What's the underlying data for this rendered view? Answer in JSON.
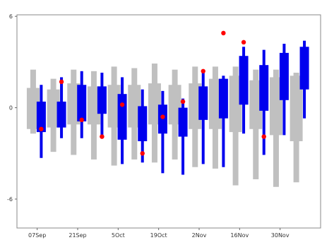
{
  "chart_data": {
    "type": "box",
    "title": "",
    "xlabel": "",
    "ylabel": "",
    "ylim": [
      -7.9,
      6.1
    ],
    "yticks": [
      6,
      0,
      -6
    ],
    "ytick_labels": [
      "6",
      "0",
      "-6"
    ],
    "xtick_labels": [
      "07Sep",
      "21Sep",
      "5Oct",
      "19Oct",
      "2Nov",
      "16Nov",
      "30Nov"
    ],
    "xtick_positions": [
      1,
      3,
      5,
      7,
      9,
      11,
      13
    ],
    "grid": false,
    "legend": "none",
    "colors": {
      "gray_series": "#c0c0c0",
      "blue_series": "#0000ee",
      "observed": "#ff0000"
    },
    "gray_series": [
      {
        "x": 0.8,
        "min": -1.7,
        "q1": -1.4,
        "q3": 1.3,
        "max": 2.5
      },
      {
        "x": 1.8,
        "min": -2.9,
        "q1": -1.3,
        "q3": 1.2,
        "max": 1.9
      },
      {
        "x": 2.8,
        "min": -3.1,
        "q1": -1.1,
        "q3": 1.6,
        "max": 2.5
      },
      {
        "x": 3.8,
        "min": -3.4,
        "q1": -1.1,
        "q3": 1.4,
        "max": 2.4
      },
      {
        "x": 4.8,
        "min": -3.8,
        "q1": -1.3,
        "q3": 1.5,
        "max": 2.7
      },
      {
        "x": 5.8,
        "min": -3.4,
        "q1": -1.3,
        "q3": 1.5,
        "max": 2.6
      },
      {
        "x": 6.8,
        "min": -3.6,
        "q1": -1.1,
        "q3": 1.6,
        "max": 2.9
      },
      {
        "x": 7.8,
        "min": -3.4,
        "q1": -1.1,
        "q3": 1.5,
        "max": 2.5
      },
      {
        "x": 8.8,
        "min": -3.9,
        "q1": -1.4,
        "q3": 1.6,
        "max": 2.7
      },
      {
        "x": 9.8,
        "min": -4.0,
        "q1": -1.4,
        "q3": 1.9,
        "max": 2.7
      },
      {
        "x": 10.8,
        "min": -5.1,
        "q1": -1.6,
        "q3": 2.1,
        "max": 2.7
      },
      {
        "x": 11.8,
        "min": -4.7,
        "q1": -1.4,
        "q3": 1.8,
        "max": 2.5
      },
      {
        "x": 12.8,
        "min": -5.2,
        "q1": -1.8,
        "q3": 2.0,
        "max": 2.5
      },
      {
        "x": 13.8,
        "min": -4.9,
        "q1": -2.2,
        "q3": 2.1,
        "max": 2.3
      }
    ],
    "blue_series": [
      {
        "x": 1.2,
        "min": -3.3,
        "q1": -1.6,
        "q3": 0.4,
        "max": 1.5
      },
      {
        "x": 2.2,
        "min": -2.0,
        "q1": -1.3,
        "q3": 0.4,
        "max": 2.0
      },
      {
        "x": 3.2,
        "min": -2.0,
        "q1": -0.9,
        "q3": 1.5,
        "max": 2.4
      },
      {
        "x": 4.2,
        "min": -1.9,
        "q1": -0.4,
        "q3": 1.4,
        "max": 2.3
      },
      {
        "x": 5.2,
        "min": -3.7,
        "q1": -2.1,
        "q3": 0.9,
        "max": 2.0
      },
      {
        "x": 6.2,
        "min": -3.6,
        "q1": -2.2,
        "q3": 0.1,
        "max": 1.2
      },
      {
        "x": 7.2,
        "min": -4.3,
        "q1": -1.7,
        "q3": 0.2,
        "max": 1.1
      },
      {
        "x": 8.2,
        "min": -4.4,
        "q1": -1.9,
        "q3": 0.0,
        "max": 0.6
      },
      {
        "x": 9.2,
        "min": -3.7,
        "q1": -0.8,
        "q3": 1.4,
        "max": 2.5
      },
      {
        "x": 10.2,
        "min": -3.9,
        "q1": -0.7,
        "q3": 1.9,
        "max": 2.1
      },
      {
        "x": 11.2,
        "min": -1.7,
        "q1": 0.2,
        "q3": 3.4,
        "max": 4.0
      },
      {
        "x": 12.2,
        "min": -3.1,
        "q1": -0.2,
        "q3": 2.8,
        "max": 3.8
      },
      {
        "x": 13.2,
        "min": -1.8,
        "q1": 0.5,
        "q3": 3.6,
        "max": 4.2
      },
      {
        "x": 14.2,
        "min": -0.7,
        "q1": 1.2,
        "q3": 4.0,
        "max": 4.4
      }
    ],
    "observed_points": [
      {
        "x": 1.2,
        "y": -1.4
      },
      {
        "x": 2.2,
        "y": 1.7
      },
      {
        "x": 3.2,
        "y": -0.8
      },
      {
        "x": 4.2,
        "y": -1.9
      },
      {
        "x": 5.2,
        "y": 0.2
      },
      {
        "x": 6.2,
        "y": -3.0
      },
      {
        "x": 7.2,
        "y": -0.6
      },
      {
        "x": 8.2,
        "y": 0.4
      },
      {
        "x": 9.2,
        "y": 2.4
      },
      {
        "x": 10.2,
        "y": 4.9
      },
      {
        "x": 11.2,
        "y": 4.3
      },
      {
        "x": 12.2,
        "y": -1.9
      }
    ]
  }
}
